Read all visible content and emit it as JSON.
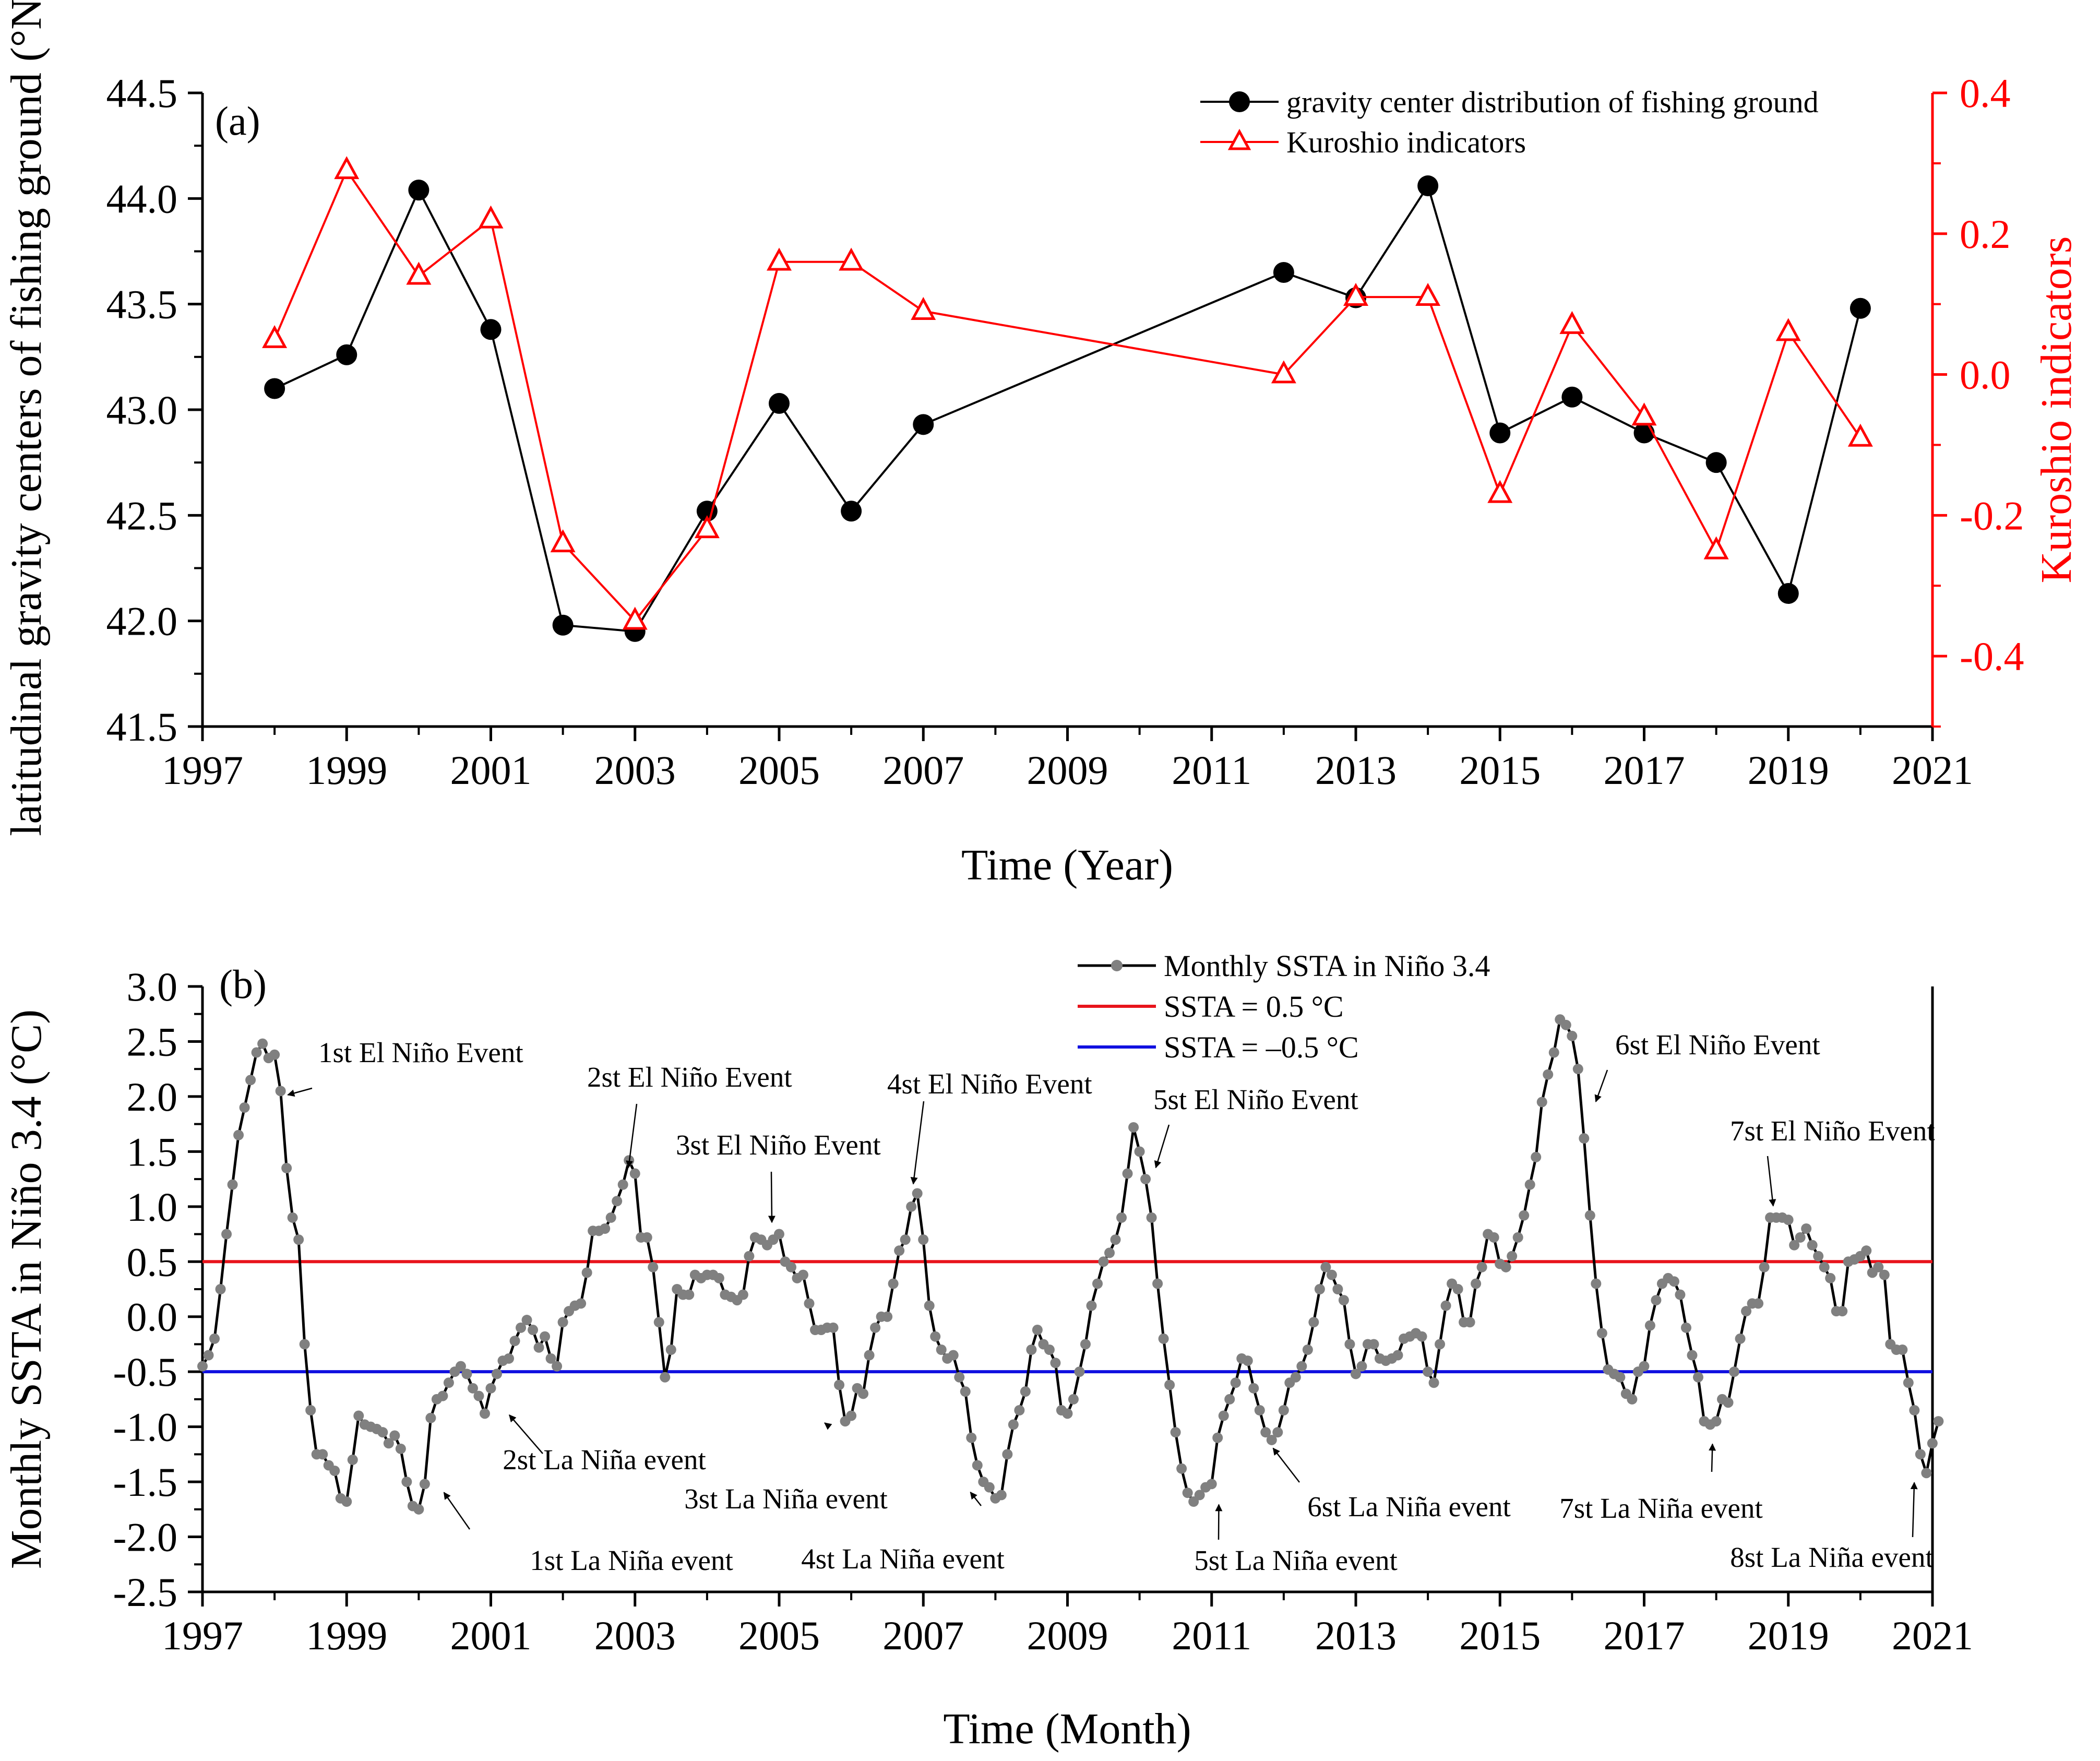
{
  "colors": {
    "gravity": "#000000",
    "kuroshio": "#ff0000",
    "ssta": "#808080",
    "ssta_line": "#000000",
    "pos_threshold": "#e8141c",
    "neg_threshold": "#1010e0"
  },
  "chart_data": [
    {
      "type": "line",
      "panel_label": "(a)",
      "xlabel": "Time (Year)",
      "ylabel": "latitudinal gravity centers of fishing ground (°N)",
      "ylabel2": "Kuroshio indicators",
      "xlim": [
        1997,
        2021
      ],
      "ylim": [
        41.5,
        44.5
      ],
      "ylim2": [
        -0.5,
        0.4
      ],
      "x_ticks": [
        1997,
        1999,
        2001,
        2003,
        2005,
        2007,
        2009,
        2011,
        2013,
        2015,
        2017,
        2019,
        2021
      ],
      "y_ticks": [
        "41.5",
        "42.0",
        "42.5",
        "43.0",
        "43.5",
        "44.0",
        "44.5"
      ],
      "y2_ticks": [
        "-0.4",
        "-0.2",
        "0.0",
        "0.2",
        "0.4"
      ],
      "series": [
        {
          "name": "gravity center distribution of fishing ground",
          "axis": "left",
          "x": [
            1998,
            1999,
            2000,
            2001,
            2002,
            2003,
            2004,
            2005,
            2006,
            2007,
            2012,
            2013,
            2014,
            2015,
            2016,
            2017,
            2018,
            2019,
            2020
          ],
          "values": [
            43.1,
            43.26,
            44.04,
            43.38,
            41.98,
            41.95,
            42.52,
            43.03,
            42.52,
            42.93,
            43.65,
            43.53,
            44.06,
            42.89,
            43.06,
            42.89,
            42.75,
            42.13,
            43.48
          ]
        },
        {
          "name": "Kuroshio indicators",
          "axis": "right",
          "x": [
            1998,
            1999,
            2000,
            2001,
            2002,
            2003,
            2004,
            2005,
            2006,
            2007,
            2012,
            2013,
            2014,
            2015,
            2016,
            2017,
            2018,
            2019,
            2020
          ],
          "values": [
            0.05,
            0.29,
            0.14,
            0.22,
            -0.24,
            -0.35,
            -0.22,
            0.16,
            0.16,
            0.09,
            0.0,
            0.11,
            0.11,
            -0.17,
            0.07,
            -0.06,
            -0.25,
            0.06,
            -0.09
          ]
        }
      ]
    },
    {
      "type": "line",
      "panel_label": "(b)",
      "xlabel": "Time (Month)",
      "ylabel": "Monthly SSTA in Niño 3.4 (°C)",
      "xlim": [
        1997,
        2021
      ],
      "ylim": [
        -2.5,
        3.0
      ],
      "x_ticks": [
        1997,
        1999,
        2001,
        2003,
        2005,
        2007,
        2009,
        2011,
        2013,
        2015,
        2017,
        2019,
        2021
      ],
      "y_ticks": [
        "-2.5",
        "-2.0",
        "-1.5",
        "-1.0",
        "-0.5",
        "0.0",
        "0.5",
        "1.0",
        "1.5",
        "2.0",
        "2.5",
        "3.0"
      ],
      "monthly_start": 1997.0,
      "monthly_step": 0.08333,
      "values": [
        -0.45,
        -0.35,
        -0.2,
        0.25,
        0.75,
        1.2,
        1.65,
        1.9,
        2.15,
        2.4,
        2.48,
        2.35,
        2.38,
        2.05,
        1.35,
        0.9,
        0.7,
        -0.25,
        -0.85,
        -1.25,
        -1.25,
        -1.35,
        -1.4,
        -1.65,
        -1.68,
        -1.3,
        -0.9,
        -0.98,
        -1.0,
        -1.02,
        -1.05,
        -1.15,
        -1.08,
        -1.2,
        -1.5,
        -1.72,
        -1.75,
        -1.52,
        -0.92,
        -0.75,
        -0.72,
        -0.6,
        -0.5,
        -0.45,
        -0.52,
        -0.65,
        -0.72,
        -0.88,
        -0.65,
        -0.52,
        -0.4,
        -0.38,
        -0.22,
        -0.1,
        -0.03,
        -0.12,
        -0.28,
        -0.18,
        -0.38,
        -0.45,
        -0.05,
        0.05,
        0.1,
        0.12,
        0.4,
        0.78,
        0.78,
        0.8,
        0.9,
        1.05,
        1.2,
        1.42,
        1.3,
        0.72,
        0.72,
        0.45,
        -0.05,
        -0.55,
        -0.3,
        0.25,
        0.2,
        0.2,
        0.38,
        0.35,
        0.38,
        0.38,
        0.35,
        0.2,
        0.18,
        0.15,
        0.2,
        0.55,
        0.72,
        0.7,
        0.65,
        0.7,
        0.75,
        0.5,
        0.45,
        0.35,
        0.38,
        0.12,
        -0.12,
        -0.12,
        -0.1,
        -0.1,
        -0.62,
        -0.95,
        -0.9,
        -0.65,
        -0.7,
        -0.35,
        -0.1,
        0.0,
        0.0,
        0.3,
        0.6,
        0.7,
        1.0,
        1.12,
        0.7,
        0.1,
        -0.18,
        -0.3,
        -0.38,
        -0.35,
        -0.55,
        -0.68,
        -1.1,
        -1.35,
        -1.5,
        -1.55,
        -1.65,
        -1.62,
        -1.25,
        -0.98,
        -0.85,
        -0.68,
        -0.3,
        -0.12,
        -0.25,
        -0.3,
        -0.42,
        -0.85,
        -0.88,
        -0.75,
        -0.5,
        -0.25,
        0.1,
        0.3,
        0.5,
        0.58,
        0.7,
        0.9,
        1.3,
        1.72,
        1.5,
        1.25,
        0.9,
        0.3,
        -0.2,
        -0.62,
        -1.05,
        -1.38,
        -1.6,
        -1.68,
        -1.62,
        -1.55,
        -1.52,
        -1.1,
        -0.9,
        -0.75,
        -0.6,
        -0.38,
        -0.4,
        -0.65,
        -0.85,
        -1.05,
        -1.12,
        -1.05,
        -0.85,
        -0.6,
        -0.55,
        -0.45,
        -0.3,
        -0.05,
        0.25,
        0.45,
        0.38,
        0.25,
        0.15,
        -0.25,
        -0.52,
        -0.45,
        -0.25,
        -0.25,
        -0.38,
        -0.4,
        -0.38,
        -0.35,
        -0.2,
        -0.18,
        -0.15,
        -0.18,
        -0.5,
        -0.6,
        -0.25,
        0.1,
        0.3,
        0.25,
        -0.05,
        -0.05,
        0.3,
        0.45,
        0.75,
        0.72,
        0.48,
        0.45,
        0.55,
        0.72,
        0.92,
        1.2,
        1.45,
        1.95,
        2.2,
        2.4,
        2.7,
        2.65,
        2.55,
        2.25,
        1.62,
        0.92,
        0.3,
        -0.15,
        -0.48,
        -0.52,
        -0.55,
        -0.7,
        -0.75,
        -0.5,
        -0.45,
        -0.08,
        0.15,
        0.3,
        0.35,
        0.32,
        0.2,
        -0.1,
        -0.35,
        -0.55,
        -0.95,
        -0.98,
        -0.95,
        -0.75,
        -0.78,
        -0.5,
        -0.2,
        0.05,
        0.12,
        0.12,
        0.45,
        0.9,
        0.9,
        0.9,
        0.88,
        0.65,
        0.72,
        0.8,
        0.65,
        0.55,
        0.45,
        0.35,
        0.05,
        0.05,
        0.5,
        0.52,
        0.55,
        0.6,
        0.4,
        0.45,
        0.38,
        -0.25,
        -0.3,
        -0.3,
        -0.6,
        -0.85,
        -1.25,
        -1.42,
        -1.15,
        -0.95
      ],
      "thresholds": [
        {
          "name": "SSTA = 0.5 °C",
          "value": 0.5
        },
        {
          "name": "SSTA = –0.5 °C",
          "value": -0.5
        }
      ],
      "legend": [
        "Monthly SSTA in Niño 3.4",
        "SSTA = 0.5 °C",
        "SSTA = –0.5 °C"
      ],
      "annotations": [
        {
          "text": "1st El Niño Event",
          "x": 1998.1,
          "y": 2.0
        },
        {
          "text": "2st El Niño Event",
          "x": 2002.9,
          "y": 1.3
        },
        {
          "text": "3st El Niño Event",
          "x": 2004.9,
          "y": 0.8
        },
        {
          "text": "4st El Niño Event",
          "x": 2006.85,
          "y": 1.15
        },
        {
          "text": "5st El Niño Event",
          "x": 2010.2,
          "y": 1.3
        },
        {
          "text": "6st El Niño Event",
          "x": 2016.3,
          "y": 1.9
        },
        {
          "text": "7st El Niño Event",
          "x": 2018.8,
          "y": 0.95
        },
        {
          "text": "1st La Niña event",
          "x": 2000.3,
          "y": -1.55
        },
        {
          "text": "2st La Niña event",
          "x": 2001.2,
          "y": -0.85
        },
        {
          "text": "3st La Niña event",
          "x": 2005.7,
          "y": -1.0
        },
        {
          "text": "4st La Niña event",
          "x": 2007.6,
          "y": -1.55
        },
        {
          "text": "5st La Niña event",
          "x": 2011.1,
          "y": -1.65
        },
        {
          "text": "6st La Niña event",
          "x": 2011.8,
          "y": -1.15
        },
        {
          "text": "7st La Niña event",
          "x": 2017.95,
          "y": -1.1
        },
        {
          "text": "8st La Niña event",
          "x": 2020.75,
          "y": -1.45
        }
      ]
    }
  ]
}
